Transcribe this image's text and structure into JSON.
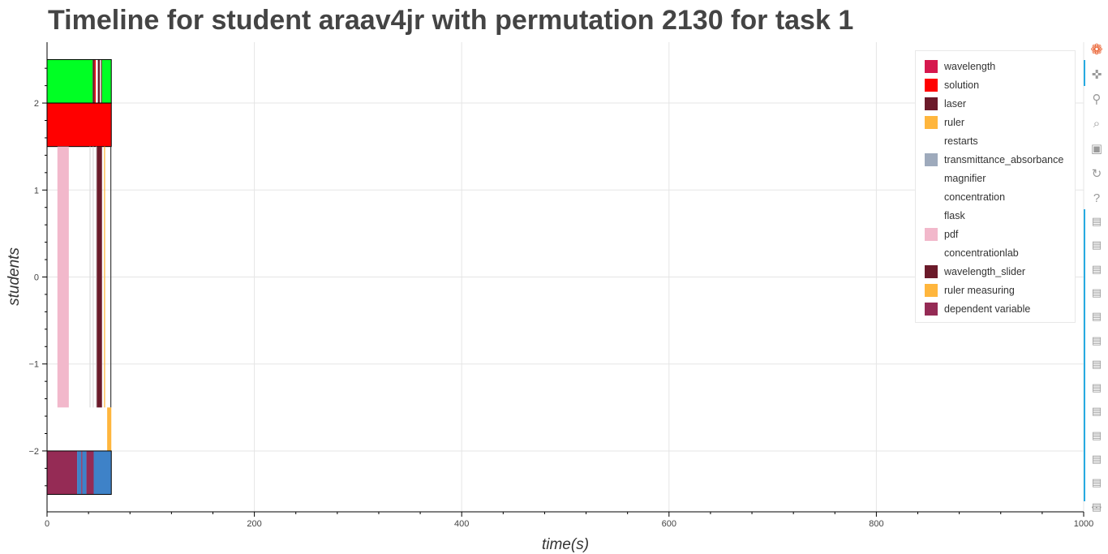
{
  "chart_data": {
    "type": "bar",
    "orientation": "horizontal-stacked-timeline",
    "title": "Timeline for student araav4jr with permutation 2130 for task 1",
    "xlabel": "time(s)",
    "ylabel": "students",
    "xlim": [
      0,
      1000
    ],
    "ylim": [
      -2.7,
      2.7
    ],
    "x_ticks": [
      0,
      200,
      400,
      600,
      800,
      1000
    ],
    "y_ticks": [
      2,
      1,
      0,
      -1,
      -2
    ],
    "y_tick_labels": [
      "2",
      "1",
      "0",
      "−1",
      "−2"
    ],
    "grid": true,
    "legend_position": "top-right",
    "legend": [
      {
        "label": "wavelength",
        "color": "#d6184e"
      },
      {
        "label": "solution",
        "color": "#ff0000"
      },
      {
        "label": "laser",
        "color": "#6b1a2a"
      },
      {
        "label": "ruler",
        "color": "#ffb63d"
      },
      {
        "label": "restarts",
        "color": "#ffffff"
      },
      {
        "label": "transmittance_absorbance",
        "color": "#9eaabc"
      },
      {
        "label": "magnifier",
        "color": "#ffffff"
      },
      {
        "label": "concentration",
        "color": "#ffffff"
      },
      {
        "label": "flask",
        "color": "#ffffff"
      },
      {
        "label": "pdf",
        "color": "#f2b8cb"
      },
      {
        "label": "concentrationlab",
        "color": "#ffffff"
      },
      {
        "label": "wavelength_slider",
        "color": "#6b1a2a"
      },
      {
        "label": "ruler measuring",
        "color": "#ffb63d"
      },
      {
        "label": "dependent variable",
        "color": "#952b55"
      }
    ],
    "rows": [
      {
        "y": 2.25,
        "height": 0.5,
        "outline": true,
        "segments": [
          {
            "start": 0,
            "end": 44,
            "color": "#00ff24"
          },
          {
            "start": 44,
            "end": 46,
            "color": "#6b1a2a"
          },
          {
            "start": 46,
            "end": 47,
            "color": "#ff0000"
          },
          {
            "start": 47,
            "end": 49,
            "color": "#ffffff"
          },
          {
            "start": 49,
            "end": 51,
            "color": "#6b1a2a"
          },
          {
            "start": 51,
            "end": 52,
            "color": "#ffffff"
          },
          {
            "start": 52,
            "end": 53,
            "color": "#6b1a2a"
          },
          {
            "start": 53,
            "end": 62,
            "color": "#00ff24"
          }
        ]
      },
      {
        "y": 1.75,
        "height": 0.5,
        "outline": true,
        "segments": [
          {
            "start": 0,
            "end": 62,
            "color": "#ff0000"
          }
        ]
      },
      {
        "y": 0,
        "height": 3.0,
        "outline": false,
        "segments": [
          {
            "start": 10,
            "end": 21,
            "color": "#f2b8cb"
          },
          {
            "start": 41,
            "end": 42,
            "color": "#dddddd"
          },
          {
            "start": 44,
            "end": 45,
            "color": "#dddddd"
          },
          {
            "start": 47,
            "end": 48,
            "color": "#dddddd"
          },
          {
            "start": 48,
            "end": 53,
            "color": "#6b1a2a"
          },
          {
            "start": 55,
            "end": 56,
            "color": "#ffb63d"
          },
          {
            "start": 61,
            "end": 62,
            "color": "#444444"
          }
        ]
      },
      {
        "y": -1.75,
        "height": 0.5,
        "outline": false,
        "segments": [
          {
            "start": 58,
            "end": 62,
            "color": "#ffb63d"
          }
        ]
      },
      {
        "y": -2.25,
        "height": 0.5,
        "outline": true,
        "segments": [
          {
            "start": 0,
            "end": 29,
            "color": "#952b55"
          },
          {
            "start": 29,
            "end": 33,
            "color": "#3e82c8"
          },
          {
            "start": 33,
            "end": 34,
            "color": "#952b55"
          },
          {
            "start": 34,
            "end": 38,
            "color": "#3e82c8"
          },
          {
            "start": 38,
            "end": 45,
            "color": "#952b55"
          },
          {
            "start": 45,
            "end": 62,
            "color": "#3e82c8"
          }
        ]
      }
    ]
  },
  "toolbar": {
    "tools": [
      {
        "name": "bokeh-logo-icon",
        "glyph": "❁"
      },
      {
        "name": "pan-tool-icon",
        "glyph": "✜"
      },
      {
        "name": "box-zoom-tool-icon",
        "glyph": "⚲"
      },
      {
        "name": "wheel-zoom-tool-icon",
        "glyph": "⌕"
      },
      {
        "name": "save-tool-icon",
        "glyph": "▣"
      },
      {
        "name": "reset-tool-icon",
        "glyph": "↻"
      },
      {
        "name": "help-tool-icon",
        "glyph": "?"
      }
    ],
    "hover_tool_count": 13,
    "hover_glyph": "▤",
    "more_glyph": "⋯"
  }
}
